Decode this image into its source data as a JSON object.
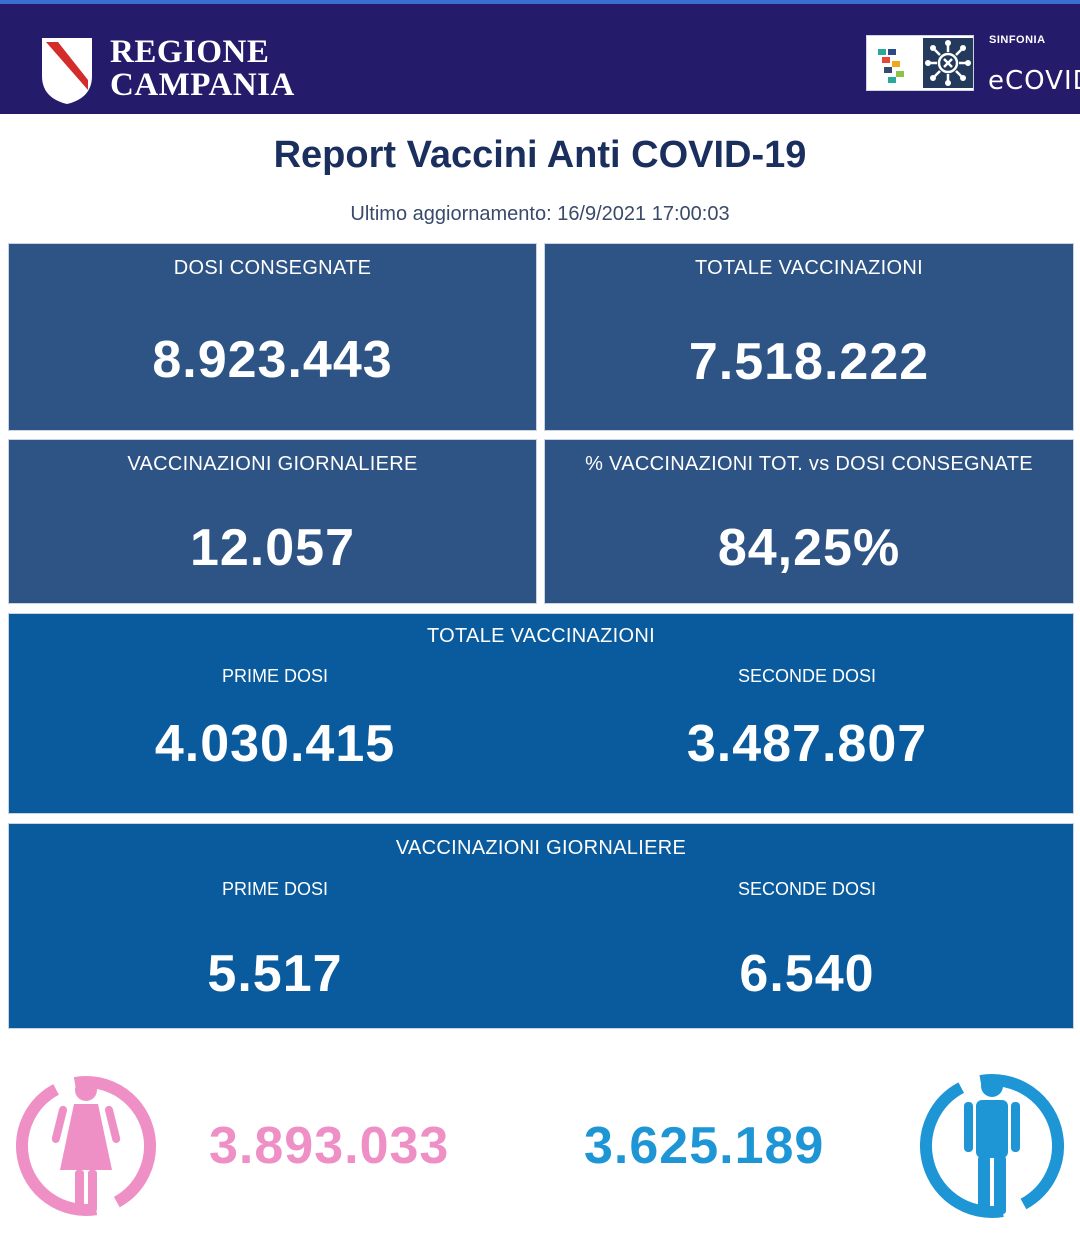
{
  "header": {
    "region_line1": "REGIONE",
    "region_line2": "CAMPANIA",
    "partner_label": "SINFONIA",
    "partner_name": "eCOVID"
  },
  "report": {
    "title": "Report Vaccini Anti COVID-19",
    "updated": "Ultimo aggiornamento: 16/9/2021  17:00:03"
  },
  "cards": {
    "dosi_consegnate": {
      "label": "DOSI  CONSEGNATE",
      "value": "8.923.443"
    },
    "totale_vaccinazioni": {
      "label": "TOTALE VACCINAZIONI",
      "value": "7.518.222"
    },
    "vaccinazioni_giornaliere": {
      "label": "VACCINAZIONI GIORNALIERE",
      "value": "12.057"
    },
    "percentuale": {
      "label": "% VACCINAZIONI TOT. vs DOSI CONSEGNATE",
      "value": "84,25%"
    }
  },
  "totale_breakdown": {
    "label": "TOTALE VACCINAZIONI",
    "prime_label": "PRIME DOSI",
    "prime_value": "4.030.415",
    "seconde_label": "SECONDE DOSI",
    "seconde_value": "3.487.807"
  },
  "giornaliere_breakdown": {
    "label": "VACCINAZIONI GIORNALIERE",
    "prime_label": "PRIME DOSI",
    "prime_value": "5.517",
    "seconde_label": "SECONDE DOSI",
    "seconde_value": "6.540"
  },
  "gender": {
    "female_value": "3.893.033",
    "male_value": "3.625.189",
    "female_icon": "female-icon",
    "male_icon": "male-icon",
    "female_color": "#ee8fc5",
    "male_color": "#1e96d6"
  },
  "colors": {
    "header_bg": "#241b6b",
    "card_bg": "#2e5486",
    "card_blue_bg": "#0a5b9d",
    "title": "#1b2f5e"
  }
}
